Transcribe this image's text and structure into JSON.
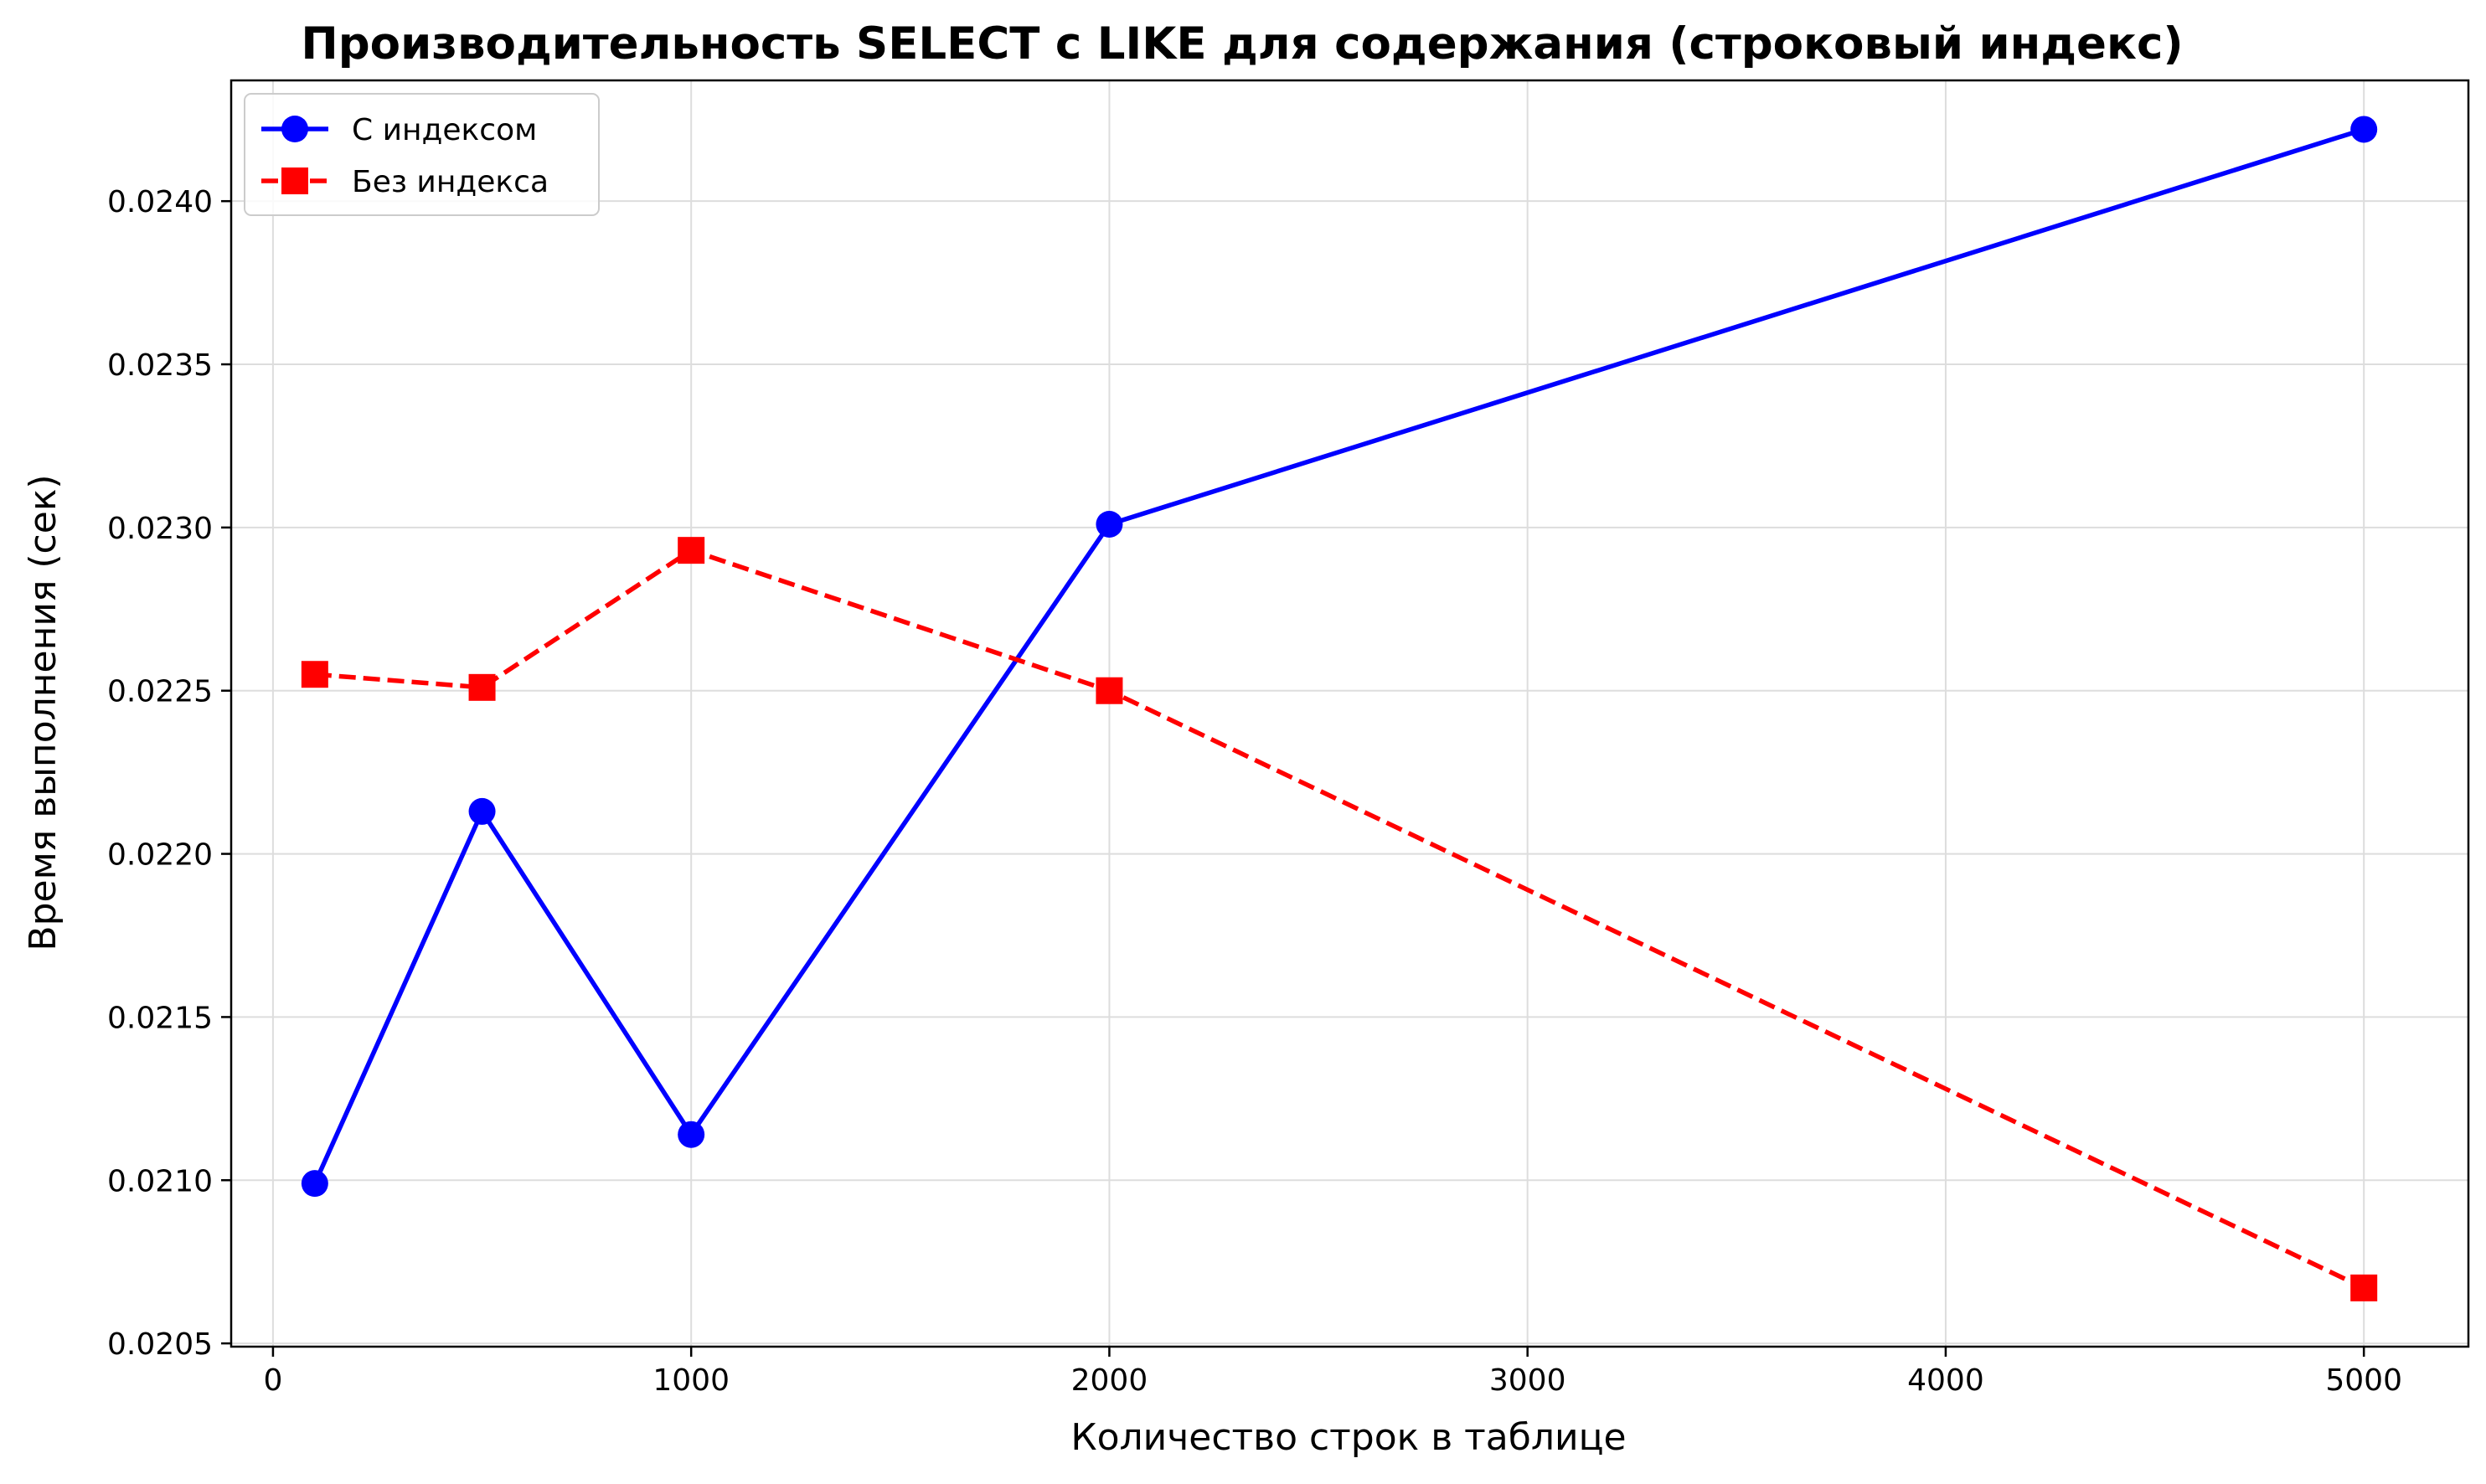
{
  "chart_data": {
    "type": "line",
    "title": "Производительность SELECT с LIKE для содержания (строковый индекс)",
    "xlabel": "Количество строк в таблице",
    "ylabel": "Время выполнения (сек)",
    "x": [
      100,
      500,
      1000,
      2000,
      5000
    ],
    "xlim": [
      -100,
      5250
    ],
    "ylim": [
      0.02049,
      0.02437
    ],
    "xticks": [
      0,
      1000,
      2000,
      3000,
      4000,
      5000
    ],
    "yticks": [
      0.0205,
      0.021,
      0.0215,
      0.022,
      0.0225,
      0.023,
      0.0235,
      0.024
    ],
    "ytick_labels": [
      "0.0205",
      "0.0210",
      "0.0215",
      "0.0220",
      "0.0225",
      "0.0230",
      "0.0235",
      "0.0240"
    ],
    "grid": true,
    "legend_position": "top-left",
    "series": [
      {
        "name": "С индексом",
        "values": [
          0.02099,
          0.02213,
          0.02114,
          0.02301,
          0.02422
        ],
        "color": "#0000ff",
        "line_style": "solid",
        "marker": "circle"
      },
      {
        "name": "Без индекса",
        "values": [
          0.02255,
          0.02251,
          0.02293,
          0.0225,
          0.02067
        ],
        "color": "#ff0000",
        "line_style": "dashed",
        "marker": "square"
      }
    ]
  }
}
